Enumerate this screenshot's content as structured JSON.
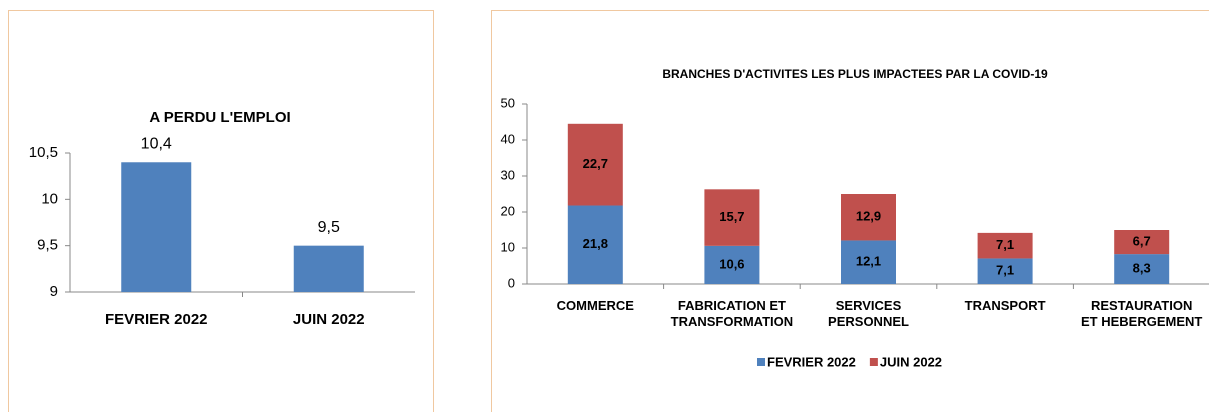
{
  "chart_data": [
    {
      "type": "bar",
      "title": "A PERDU L'EMPLOI",
      "categories": [
        "FEVRIER 2022",
        "JUIN 2022"
      ],
      "values": [
        10.4,
        9.5
      ],
      "value_labels": [
        "10,4",
        "9,5"
      ],
      "color": "#4f81bd",
      "ylim": [
        9,
        10.5
      ],
      "yticks": [
        9,
        {
          "value": 9.5,
          "label": "9,5"
        },
        10,
        {
          "value": 10.5,
          "label": "10,5"
        }
      ]
    },
    {
      "type": "stacked_bar",
      "title": "BRANCHES D'ACTIVITES LES PLUS IMPACTEES PAR LA COVID-19",
      "categories": [
        "COMMERCE",
        "FABRICATION ET\nTRANSFORMATION",
        "SERVICES\nPERSONNEL",
        "TRANSPORT",
        "RESTAURATION\nET HEBERGEMENT"
      ],
      "series": [
        {
          "name": "FEVRIER 2022",
          "color": "#4f81bd",
          "values": [
            21.8,
            10.6,
            12.1,
            7.1,
            8.3
          ],
          "value_labels": [
            "21,8",
            "10,6",
            "12,1",
            "7,1",
            "8,3"
          ]
        },
        {
          "name": "JUIN 2022",
          "color": "#c0504d",
          "values": [
            22.7,
            15.7,
            12.9,
            7.1,
            6.7
          ],
          "value_labels": [
            "22,7",
            "15,7",
            "12,9",
            "7,1",
            "6,7"
          ]
        }
      ],
      "ylim": [
        0,
        50
      ],
      "yticks": [
        0,
        10,
        20,
        30,
        40,
        50
      ],
      "legend": "bottom"
    }
  ]
}
